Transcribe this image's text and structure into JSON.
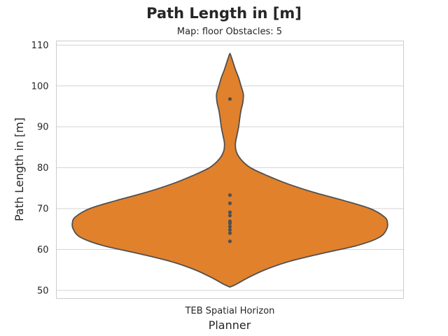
{
  "chart_data": {
    "type": "violin",
    "title": "Path Length in [m]",
    "subtitle": "Map: floor Obstacles: 5",
    "xlabel": "Planner",
    "ylabel": "Path Length in [m]",
    "categories": [
      "TEB Spatial Horizon"
    ],
    "ylim": [
      48,
      111
    ],
    "yticks": [
      50,
      60,
      70,
      80,
      90,
      100,
      110
    ],
    "grid": true,
    "violin_color": "#e1812c",
    "edge_color": "#505050",
    "point_color": "#505050",
    "points": [
      62.0,
      64.0,
      64.8,
      65.6,
      66.4,
      66.9,
      68.3,
      69.1,
      71.3,
      73.3,
      96.8
    ],
    "violin_extent": [
      50.8,
      107.9
    ],
    "density_profile": [
      [
        50.8,
        0.0
      ],
      [
        51.5,
        0.04
      ],
      [
        53,
        0.11
      ],
      [
        55,
        0.22
      ],
      [
        57,
        0.37
      ],
      [
        59,
        0.58
      ],
      [
        61,
        0.81
      ],
      [
        63,
        0.95
      ],
      [
        65,
        0.995
      ],
      [
        66.6,
        1.0
      ],
      [
        68,
        0.98
      ],
      [
        70,
        0.89
      ],
      [
        72,
        0.72
      ],
      [
        74,
        0.53
      ],
      [
        76,
        0.37
      ],
      [
        78,
        0.24
      ],
      [
        80,
        0.13
      ],
      [
        82,
        0.07
      ],
      [
        84,
        0.04
      ],
      [
        86,
        0.035
      ],
      [
        88,
        0.045
      ],
      [
        90,
        0.055
      ],
      [
        92,
        0.062
      ],
      [
        94,
        0.07
      ],
      [
        96,
        0.082
      ],
      [
        98,
        0.085
      ],
      [
        100,
        0.07
      ],
      [
        102,
        0.055
      ],
      [
        104,
        0.035
      ],
      [
        106,
        0.018
      ],
      [
        107.5,
        0.005
      ],
      [
        107.9,
        0.0
      ]
    ]
  }
}
